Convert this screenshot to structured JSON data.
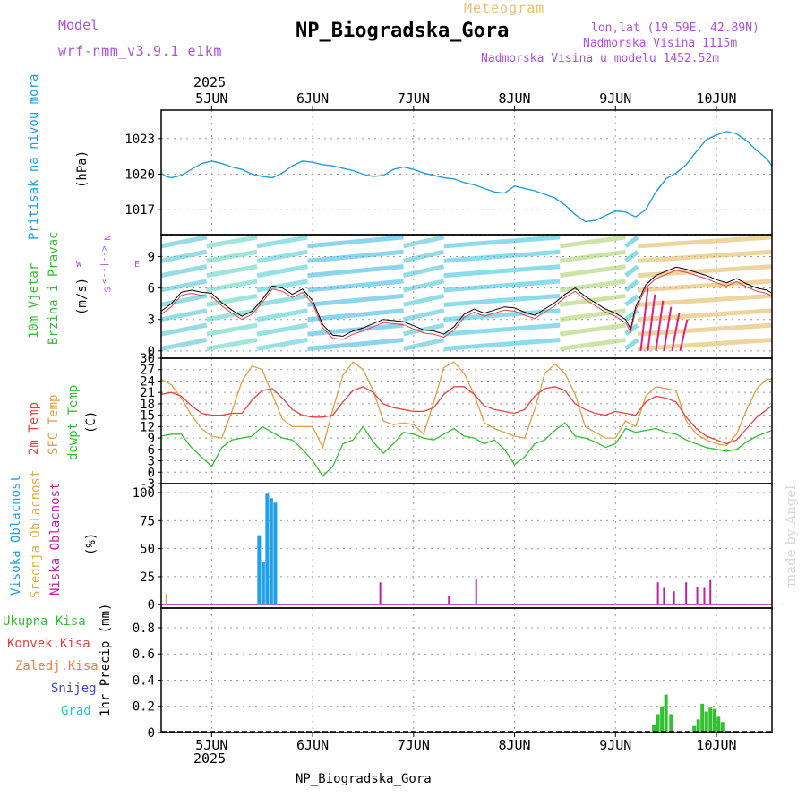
{
  "header": {
    "model_label": "Model",
    "model_name": "wrf-nmm_v3.9.1 e1km",
    "subtitle": "Meteogram",
    "title": "NP_Biogradska_Gora",
    "coords": "lon,lat (19.59E, 42.89N)",
    "altitude": "Nadmorska Visina 1115m",
    "model_altitude": "Nadmorska Visina u modelu 1452.52m",
    "year_top": "2025",
    "year_bottom": "2025",
    "footer_name": "NP_Biogradska_Gora",
    "watermark": "made by Angel"
  },
  "colors": {
    "pressure": "#1ea0dc",
    "temp2m": "#e84040",
    "sfc": "#e0a040",
    "dewpt": "#30c030",
    "precip": "#30c030",
    "high_cloud": "#1ea0f0",
    "mid_cloud": "#e0b040",
    "low_cloud": "#c020a0"
  },
  "chart_data": [
    {
      "type": "line",
      "panel": "pressure",
      "ylabel": [
        "Pritisak na nivou mora",
        "(hPa)"
      ],
      "y_ticks": [
        "1023",
        "1020",
        "1017"
      ],
      "x_ticks": [
        "5JUN",
        "6JUN",
        "7JUN",
        "8JUN",
        "9JUN",
        "10JUN"
      ],
      "x_day_range": [
        4.5,
        10.55
      ],
      "ylim": [
        1014.9,
        1025.4
      ],
      "grid": true,
      "series": [
        {
          "x": [
            4.5,
            4.55,
            4.6,
            4.7,
            4.8,
            4.9,
            5.0,
            5.1,
            5.2,
            5.3,
            5.4,
            5.5,
            5.6,
            5.7,
            5.8,
            5.9,
            6.0,
            6.1,
            6.2,
            6.3,
            6.4,
            6.5,
            6.6,
            6.7,
            6.8,
            6.9,
            7.0,
            7.1,
            7.2,
            7.3,
            7.4,
            7.5,
            7.6,
            7.7,
            7.8,
            7.9,
            8.0,
            8.1,
            8.2,
            8.3,
            8.4,
            8.5,
            8.6,
            8.7,
            8.8,
            8.9,
            9.0,
            9.1,
            9.2,
            9.3,
            9.4,
            9.5,
            9.6,
            9.7,
            9.8,
            9.9,
            10.0,
            10.1,
            10.2,
            10.3,
            10.4,
            10.5,
            10.55
          ],
          "values": [
            1020.1,
            1019.8,
            1019.7,
            1019.9,
            1020.4,
            1020.9,
            1021.1,
            1020.9,
            1020.6,
            1020.4,
            1020.0,
            1019.8,
            1019.7,
            1020.1,
            1020.7,
            1021.1,
            1021.0,
            1020.8,
            1020.7,
            1020.5,
            1020.3,
            1020.0,
            1019.8,
            1019.9,
            1020.4,
            1020.6,
            1020.4,
            1020.1,
            1019.9,
            1019.7,
            1019.6,
            1019.3,
            1019.1,
            1018.8,
            1018.5,
            1018.4,
            1019.0,
            1018.8,
            1018.6,
            1018.3,
            1018.0,
            1017.4,
            1016.6,
            1016.0,
            1016.1,
            1016.5,
            1016.9,
            1016.8,
            1016.4,
            1017.0,
            1018.5,
            1019.6,
            1020.1,
            1020.8,
            1021.9,
            1022.9,
            1023.3,
            1023.6,
            1023.4,
            1022.8,
            1022.0,
            1021.3,
            1020.7
          ]
        }
      ]
    },
    {
      "type": "line",
      "panel": "wind",
      "ylabel": [
        "10m Vjetar",
        "Brzina i Pravac",
        "(m/s)"
      ],
      "compass": {
        "n": "N",
        "w": "W",
        "e": "E",
        "s": "S",
        "arrows": "<--|-->"
      },
      "y_ticks": [
        "9",
        "6",
        "3",
        "0"
      ],
      "ylim": [
        -0.7,
        11.1
      ],
      "grid": true,
      "series": [
        {
          "x": [
            4.5,
            4.6,
            4.7,
            4.8,
            4.9,
            5.0,
            5.1,
            5.2,
            5.3,
            5.4,
            5.5,
            5.6,
            5.7,
            5.8,
            5.9,
            6.0,
            6.1,
            6.2,
            6.3,
            6.4,
            6.5,
            6.6,
            6.7,
            6.8,
            6.9,
            7.0,
            7.1,
            7.2,
            7.3,
            7.4,
            7.5,
            7.6,
            7.7,
            7.8,
            7.9,
            8.0,
            8.1,
            8.2,
            8.3,
            8.4,
            8.5,
            8.6,
            8.7,
            8.8,
            8.9,
            9.0,
            9.1,
            9.15,
            9.2,
            9.3,
            9.4,
            9.5,
            9.6,
            9.7,
            9.8,
            9.9,
            10.0,
            10.1,
            10.2,
            10.3,
            10.4,
            10.5,
            10.55
          ],
          "values": [
            3.8,
            4.5,
            5.6,
            5.8,
            5.6,
            5.5,
            4.6,
            3.9,
            3.3,
            3.8,
            4.9,
            6.2,
            6.0,
            5.4,
            5.9,
            4.8,
            2.5,
            1.5,
            1.4,
            1.9,
            2.2,
            2.6,
            3.0,
            2.9,
            2.8,
            2.4,
            2.0,
            1.9,
            1.6,
            2.3,
            3.5,
            4.0,
            3.6,
            3.9,
            4.2,
            4.1,
            3.7,
            3.4,
            4.0,
            4.6,
            5.4,
            6.0,
            5.2,
            4.6,
            4.0,
            3.6,
            3.0,
            2.1,
            4.2,
            6.3,
            7.2,
            7.6,
            8.0,
            7.8,
            7.5,
            7.2,
            6.8,
            6.5,
            6.9,
            6.4,
            6.0,
            5.8,
            5.5
          ]
        }
      ]
    },
    {
      "type": "line",
      "panel": "temperature",
      "ylabel": [
        "2m Temp",
        "SFC Temp",
        "dewpt Temp",
        "(C)"
      ],
      "y_ticks": [
        "30",
        "27",
        "24",
        "21",
        "18",
        "15",
        "12",
        "9",
        "6",
        "3",
        "0",
        "-3"
      ],
      "ylim": [
        -3,
        30
      ],
      "grid": true,
      "series": [
        {
          "name": "2m Temp",
          "x": [
            4.5,
            4.6,
            4.7,
            4.8,
            4.9,
            5.0,
            5.1,
            5.2,
            5.3,
            5.4,
            5.5,
            5.6,
            5.7,
            5.8,
            5.9,
            6.0,
            6.1,
            6.2,
            6.3,
            6.4,
            6.5,
            6.6,
            6.7,
            6.8,
            6.9,
            7.0,
            7.1,
            7.2,
            7.3,
            7.4,
            7.5,
            7.6,
            7.7,
            7.8,
            7.9,
            8.0,
            8.1,
            8.2,
            8.3,
            8.4,
            8.5,
            8.6,
            8.7,
            8.8,
            8.9,
            9.0,
            9.1,
            9.2,
            9.3,
            9.4,
            9.5,
            9.6,
            9.7,
            9.8,
            9.9,
            10.0,
            10.1,
            10.2,
            10.3,
            10.4,
            10.5,
            10.55
          ],
          "values": [
            20.5,
            21.0,
            20.0,
            17.5,
            15.5,
            15.0,
            15.0,
            15.5,
            15.5,
            19.0,
            21.5,
            22.0,
            19.5,
            16.5,
            15.0,
            14.5,
            14.5,
            15.0,
            18.5,
            21.5,
            22.5,
            21.0,
            18.0,
            17.0,
            16.5,
            16.0,
            16.0,
            17.0,
            20.5,
            22.5,
            22.5,
            20.5,
            17.5,
            16.5,
            16.0,
            15.5,
            16.5,
            20.0,
            22.0,
            22.5,
            21.5,
            18.0,
            16.5,
            15.5,
            15.0,
            16.0,
            15.5,
            15.0,
            18.5,
            20.0,
            19.5,
            18.5,
            14.5,
            11.5,
            9.5,
            8.5,
            7.5,
            8.5,
            11.5,
            14.5,
            16.5,
            17.5
          ]
        },
        {
          "name": "SFC Temp",
          "x": [
            4.5,
            4.6,
            4.7,
            4.8,
            4.9,
            5.0,
            5.1,
            5.2,
            5.3,
            5.4,
            5.5,
            5.6,
            5.7,
            5.8,
            5.9,
            6.0,
            6.1,
            6.2,
            6.3,
            6.4,
            6.5,
            6.6,
            6.7,
            6.8,
            6.9,
            7.0,
            7.1,
            7.2,
            7.3,
            7.4,
            7.5,
            7.6,
            7.7,
            7.8,
            7.9,
            8.0,
            8.1,
            8.2,
            8.3,
            8.4,
            8.5,
            8.6,
            8.7,
            8.8,
            8.9,
            9.0,
            9.1,
            9.2,
            9.3,
            9.4,
            9.5,
            9.6,
            9.7,
            9.8,
            9.9,
            10.0,
            10.1,
            10.2,
            10.3,
            10.4,
            10.5,
            10.55
          ],
          "values": [
            24.5,
            23.0,
            19.5,
            15.0,
            11.5,
            9.5,
            9.0,
            16.0,
            24.0,
            28.0,
            27.0,
            20.5,
            14.0,
            12.0,
            12.0,
            12.0,
            6.5,
            16.5,
            25.5,
            29.0,
            27.0,
            21.5,
            13.5,
            12.5,
            13.0,
            12.5,
            10.0,
            18.5,
            27.5,
            29.0,
            26.0,
            20.5,
            13.0,
            11.5,
            10.5,
            9.5,
            9.0,
            16.5,
            26.0,
            28.5,
            26.0,
            20.5,
            12.0,
            10.5,
            9.0,
            9.0,
            13.5,
            12.0,
            20.0,
            22.5,
            22.0,
            21.5,
            13.5,
            10.0,
            8.5,
            7.5,
            7.0,
            10.0,
            16.5,
            22.0,
            24.5,
            24.5
          ]
        },
        {
          "name": "dewpt Temp",
          "x": [
            4.5,
            4.6,
            4.7,
            4.8,
            4.9,
            5.0,
            5.1,
            5.2,
            5.3,
            5.4,
            5.5,
            5.6,
            5.7,
            5.8,
            5.9,
            6.0,
            6.1,
            6.2,
            6.3,
            6.4,
            6.5,
            6.6,
            6.7,
            6.8,
            6.9,
            7.0,
            7.1,
            7.2,
            7.3,
            7.4,
            7.5,
            7.6,
            7.7,
            7.8,
            7.9,
            8.0,
            8.1,
            8.2,
            8.3,
            8.4,
            8.5,
            8.6,
            8.7,
            8.8,
            8.9,
            9.0,
            9.1,
            9.2,
            9.3,
            9.4,
            9.5,
            9.6,
            9.7,
            9.8,
            9.9,
            10.0,
            10.1,
            10.2,
            10.3,
            10.4,
            10.5,
            10.55
          ],
          "values": [
            9.5,
            10.0,
            10.0,
            6.5,
            4.0,
            1.5,
            6.5,
            8.5,
            9.0,
            9.5,
            12.0,
            10.5,
            9.0,
            8.5,
            6.0,
            3.0,
            -1.0,
            1.5,
            7.5,
            8.5,
            12.0,
            8.0,
            5.0,
            7.5,
            10.5,
            10.0,
            9.0,
            8.5,
            10.0,
            11.5,
            9.5,
            9.0,
            7.5,
            8.5,
            6.0,
            2.0,
            4.0,
            7.5,
            8.5,
            11.0,
            13.0,
            9.5,
            9.0,
            8.0,
            6.5,
            7.5,
            11.5,
            10.5,
            11.0,
            11.5,
            10.5,
            10.0,
            8.5,
            7.5,
            6.5,
            6.0,
            5.5,
            6.0,
            8.0,
            9.5,
            10.5,
            11.0
          ]
        }
      ]
    },
    {
      "type": "bar",
      "panel": "cloud",
      "ylabel": [
        "Visoka Oblacnost",
        "Srednja Oblacnost",
        "Niska Oblacnost",
        "(%)"
      ],
      "y_ticks": [
        "100",
        "75",
        "50",
        "25",
        "0"
      ],
      "ylim": [
        -3,
        108
      ],
      "grid": true,
      "series": [
        {
          "name": "Visoka Oblacnost",
          "x": [
            5.47,
            5.51,
            5.55,
            5.59,
            5.63
          ],
          "values": [
            62,
            38,
            99,
            95,
            91
          ]
        },
        {
          "name": "Srednja Oblacnost",
          "x": [
            4.55
          ],
          "values": [
            10
          ]
        },
        {
          "name": "Niska Oblacnost",
          "x": [
            6.67,
            7.35,
            7.62,
            9.42,
            9.48,
            9.58,
            9.7,
            9.81,
            9.88,
            9.94
          ],
          "values": [
            20,
            8,
            23,
            20,
            15,
            12,
            20,
            16,
            15,
            22
          ]
        }
      ]
    },
    {
      "type": "bar",
      "panel": "precip",
      "ylabel": [
        "1hr Precip (mm)"
      ],
      "legend": [
        "Ukupna Kisa",
        "Konvek.Kisa",
        "Zaledj.Kisa",
        "Snijeg",
        "Grad"
      ],
      "y_ticks": [
        "0.8",
        "0.6",
        "0.4",
        "0.2",
        "0"
      ],
      "ylim": [
        0,
        0.95
      ],
      "grid": true,
      "series": [
        {
          "name": "Ukupna Kisa",
          "x": [
            9.38,
            9.42,
            9.46,
            9.5,
            9.55,
            9.78,
            9.82,
            9.86,
            9.9,
            9.94,
            9.98,
            10.02,
            10.06
          ],
          "values": [
            0.06,
            0.14,
            0.2,
            0.29,
            0.14,
            0.05,
            0.1,
            0.22,
            0.16,
            0.19,
            0.18,
            0.12,
            0.08
          ]
        }
      ]
    }
  ]
}
